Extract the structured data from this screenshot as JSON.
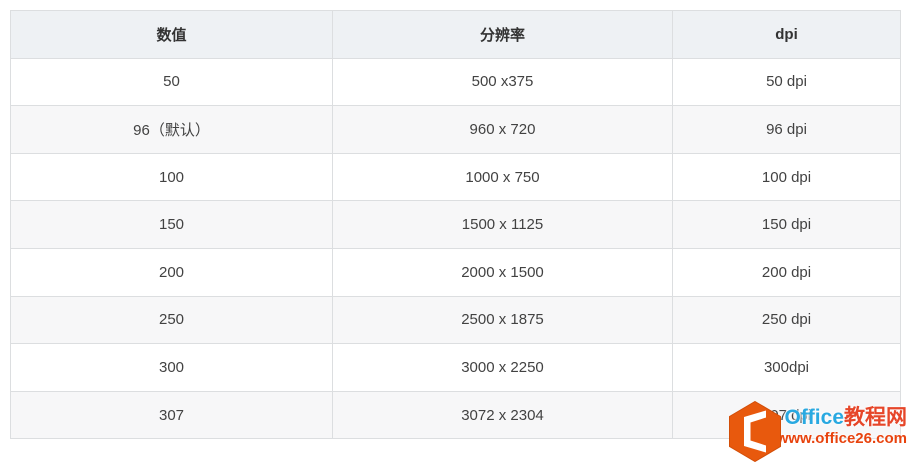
{
  "table": {
    "columns": [
      "数值",
      "分辨率",
      "dpi"
    ],
    "rows": [
      [
        "50",
        "500 x375",
        "50 dpi"
      ],
      [
        "96（默认）",
        "960 x 720",
        "96 dpi"
      ],
      [
        "100",
        "1000 x 750",
        "100 dpi"
      ],
      [
        "150",
        "1500 x 1125",
        "150 dpi"
      ],
      [
        "200",
        "2000 x 1500",
        "200 dpi"
      ],
      [
        "250",
        "2500 x 1875",
        "250 dpi"
      ],
      [
        "300",
        "3000 x 2250",
        "300dpi"
      ],
      [
        "307",
        "3072 x 2304",
        "307 dpi"
      ]
    ]
  },
  "watermark": {
    "logo_icon": "office-hexagon-logo",
    "site_name_latin": "Office",
    "site_name_cjk": "教程网",
    "url": "www.office26.com"
  },
  "colors": {
    "header_bg": "#eef1f4",
    "row_alt_bg": "#f7f7f8",
    "border": "#dcdee0",
    "cell_text": "#424242",
    "brand_orange": "#e8590d",
    "brand_blue": "#29a9e1",
    "brand_red": "#e64629",
    "url_red": "#e8430e"
  }
}
